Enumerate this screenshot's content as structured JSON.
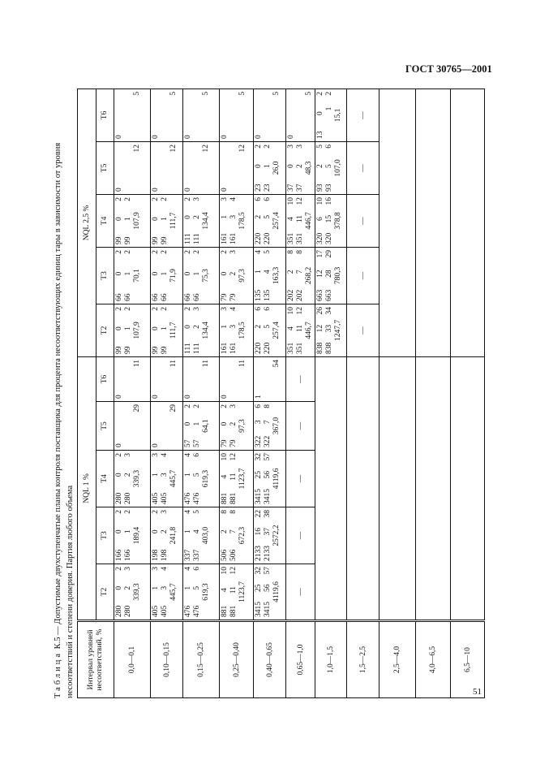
{
  "header": {
    "standard": "ГОСТ 30765—2001"
  },
  "page_number": "51",
  "caption": {
    "label": "Таблица",
    "line1": " К.5 — Допустимые двухступенчатые планы контроля поставщика для процента несоответствующих единиц тары в зависимости от уровня",
    "line2": "несоответствий и степени доверия. Партия любого объема"
  },
  "table": {
    "interval_header": "Интервал уровней несоответствий, %",
    "groups": [
      "NQL 1 %",
      "NQL 2,5 %"
    ],
    "columns": [
      "T2",
      "T3",
      "T4",
      "T5",
      "T6"
    ],
    "rows": [
      {
        "interval": "0,0—0,1",
        "nql1": [
          [
            "280 0 2",
            "280 2 3",
            "339,3"
          ],
          [
            "166 0 2",
            "166 1 2",
            "189,4"
          ],
          [
            "280 0 2",
            "280 2 3",
            "339,3"
          ],
          [
            "0",
            "",
            "29"
          ],
          [
            "0",
            "",
            "11"
          ]
        ],
        "nql25": [
          [
            "99 0 2",
            "99 1 2",
            "107,9"
          ],
          [
            "66 0 2",
            "66 1 2",
            "70,1"
          ],
          [
            "99 0 2",
            "99 1 2",
            "107,9"
          ],
          [
            "0",
            "",
            "12"
          ],
          [
            "0",
            "",
            "5"
          ]
        ]
      },
      {
        "interval": "0,10—0,15",
        "nql1": [
          [
            "405 1 3",
            "405 3 4",
            "445,7"
          ],
          [
            "198 0 2",
            "198 2 3",
            "241,8"
          ],
          [
            "405 1 3",
            "405 3 4",
            "445,7"
          ],
          [
            "0",
            "",
            "29"
          ],
          [
            "0",
            "",
            "11"
          ]
        ],
        "nql25": [
          [
            "99 0 2",
            "99 1 2",
            "111,7"
          ],
          [
            "66 0 2",
            "66 1 2",
            "71,9"
          ],
          [
            "99 0 2",
            "99 1 2",
            "111,7"
          ],
          [
            "0",
            "",
            "12"
          ],
          [
            "0",
            "",
            "5"
          ]
        ]
      },
      {
        "interval": "0,15—0,25",
        "nql1": [
          [
            "476 1 4",
            "476 5 6",
            "619,3"
          ],
          [
            "337 1 4",
            "337 4 5",
            "403,0"
          ],
          [
            "476 1 4",
            "476 5 6",
            "619,3"
          ],
          [
            "57 0 2",
            "57 1 2",
            "64,1"
          ],
          [
            "0",
            "",
            "11"
          ]
        ],
        "nql25": [
          [
            "111 0 2",
            "111 2 3",
            "134,4"
          ],
          [
            "66 0 2",
            "66 1 2",
            "75,3"
          ],
          [
            "111 0 2",
            "111 2 3",
            "134,4"
          ],
          [
            "0",
            "",
            "12"
          ],
          [
            "0",
            "",
            "5"
          ]
        ]
      },
      {
        "interval": "0,25—0,40",
        "nql1": [
          [
            "881 4 10",
            "881 11 12",
            "1123,7"
          ],
          [
            "506 2 8",
            "506 7 8",
            "672,3"
          ],
          [
            "881 4 10",
            "881 11 12",
            "1123,7"
          ],
          [
            "79 0 2",
            "79 2 3",
            "97,3"
          ],
          [
            "0",
            "",
            "11"
          ]
        ],
        "nql25": [
          [
            "161 1 3",
            "161 3 4",
            "178,5"
          ],
          [
            "79 0 2",
            "79 2 3",
            "97,3"
          ],
          [
            "161 1 3",
            "161 3 4",
            "178,5"
          ],
          [
            "0",
            "",
            "12"
          ],
          [
            "0",
            "",
            "5"
          ]
        ]
      },
      {
        "interval": "0,40—0,65",
        "nql1": [
          [
            "3415 25 32",
            "3415 56 57",
            "4119,6"
          ],
          [
            "2133 16 22",
            "2133 37 38",
            "2572,2"
          ],
          [
            "3415 25 32",
            "3415 56 57",
            "4119,6"
          ],
          [
            "322 3 6",
            "322 7 8",
            "367,0"
          ],
          [
            "1",
            "",
            "54"
          ]
        ],
        "nql25": [
          [
            "220 2 6",
            "220 5 6",
            "257,4"
          ],
          [
            "135 1 4",
            "135 4 5",
            "163,3"
          ],
          [
            "220 2 6",
            "220 5 6",
            "257,4"
          ],
          [
            "23 0 2",
            "23 1 2",
            "26,0"
          ],
          [
            "0",
            "",
            "5"
          ]
        ]
      },
      {
        "interval": "0,65—1,0",
        "nql1": [
          [
            "—"
          ],
          [
            "—"
          ],
          [
            "—"
          ],
          [
            "—"
          ],
          [
            "—"
          ]
        ],
        "nql25": [
          [
            "351 4 10",
            "351 11 12",
            "446,7"
          ],
          [
            "202 2 8",
            "202 7 8",
            "268,2"
          ],
          [
            "351 4 10",
            "351 11 12",
            "446,7"
          ],
          [
            "37 0 3",
            "37 2 3",
            "48,3"
          ],
          [
            "0",
            "",
            "5"
          ]
        ]
      },
      {
        "interval": "1,0—1,5",
        "nql1": [],
        "nql25": [
          [
            "838 12 26",
            "838 33 34",
            "1247,7"
          ],
          [
            "663 12 17",
            "663 28 29",
            "780,3"
          ],
          [
            "320 6 10",
            "320 15 16",
            "378,8"
          ],
          [
            "93 2 5",
            "93 5 6",
            "107,0"
          ],
          [
            "13 0 2",
            "1 2",
            "15,1"
          ]
        ]
      },
      {
        "interval": "1,5—2,5",
        "nql1": [],
        "nql25": [
          [
            "—"
          ],
          [
            "—"
          ],
          [
            "—"
          ],
          [
            "—"
          ],
          [
            "—"
          ]
        ]
      },
      {
        "interval": "2,5—4,0",
        "nql1": [],
        "nql25": []
      },
      {
        "interval": "4,0—6,5",
        "nql1": [],
        "nql25": []
      },
      {
        "interval": "6,5—10",
        "nql1": [],
        "nql25": []
      }
    ]
  }
}
